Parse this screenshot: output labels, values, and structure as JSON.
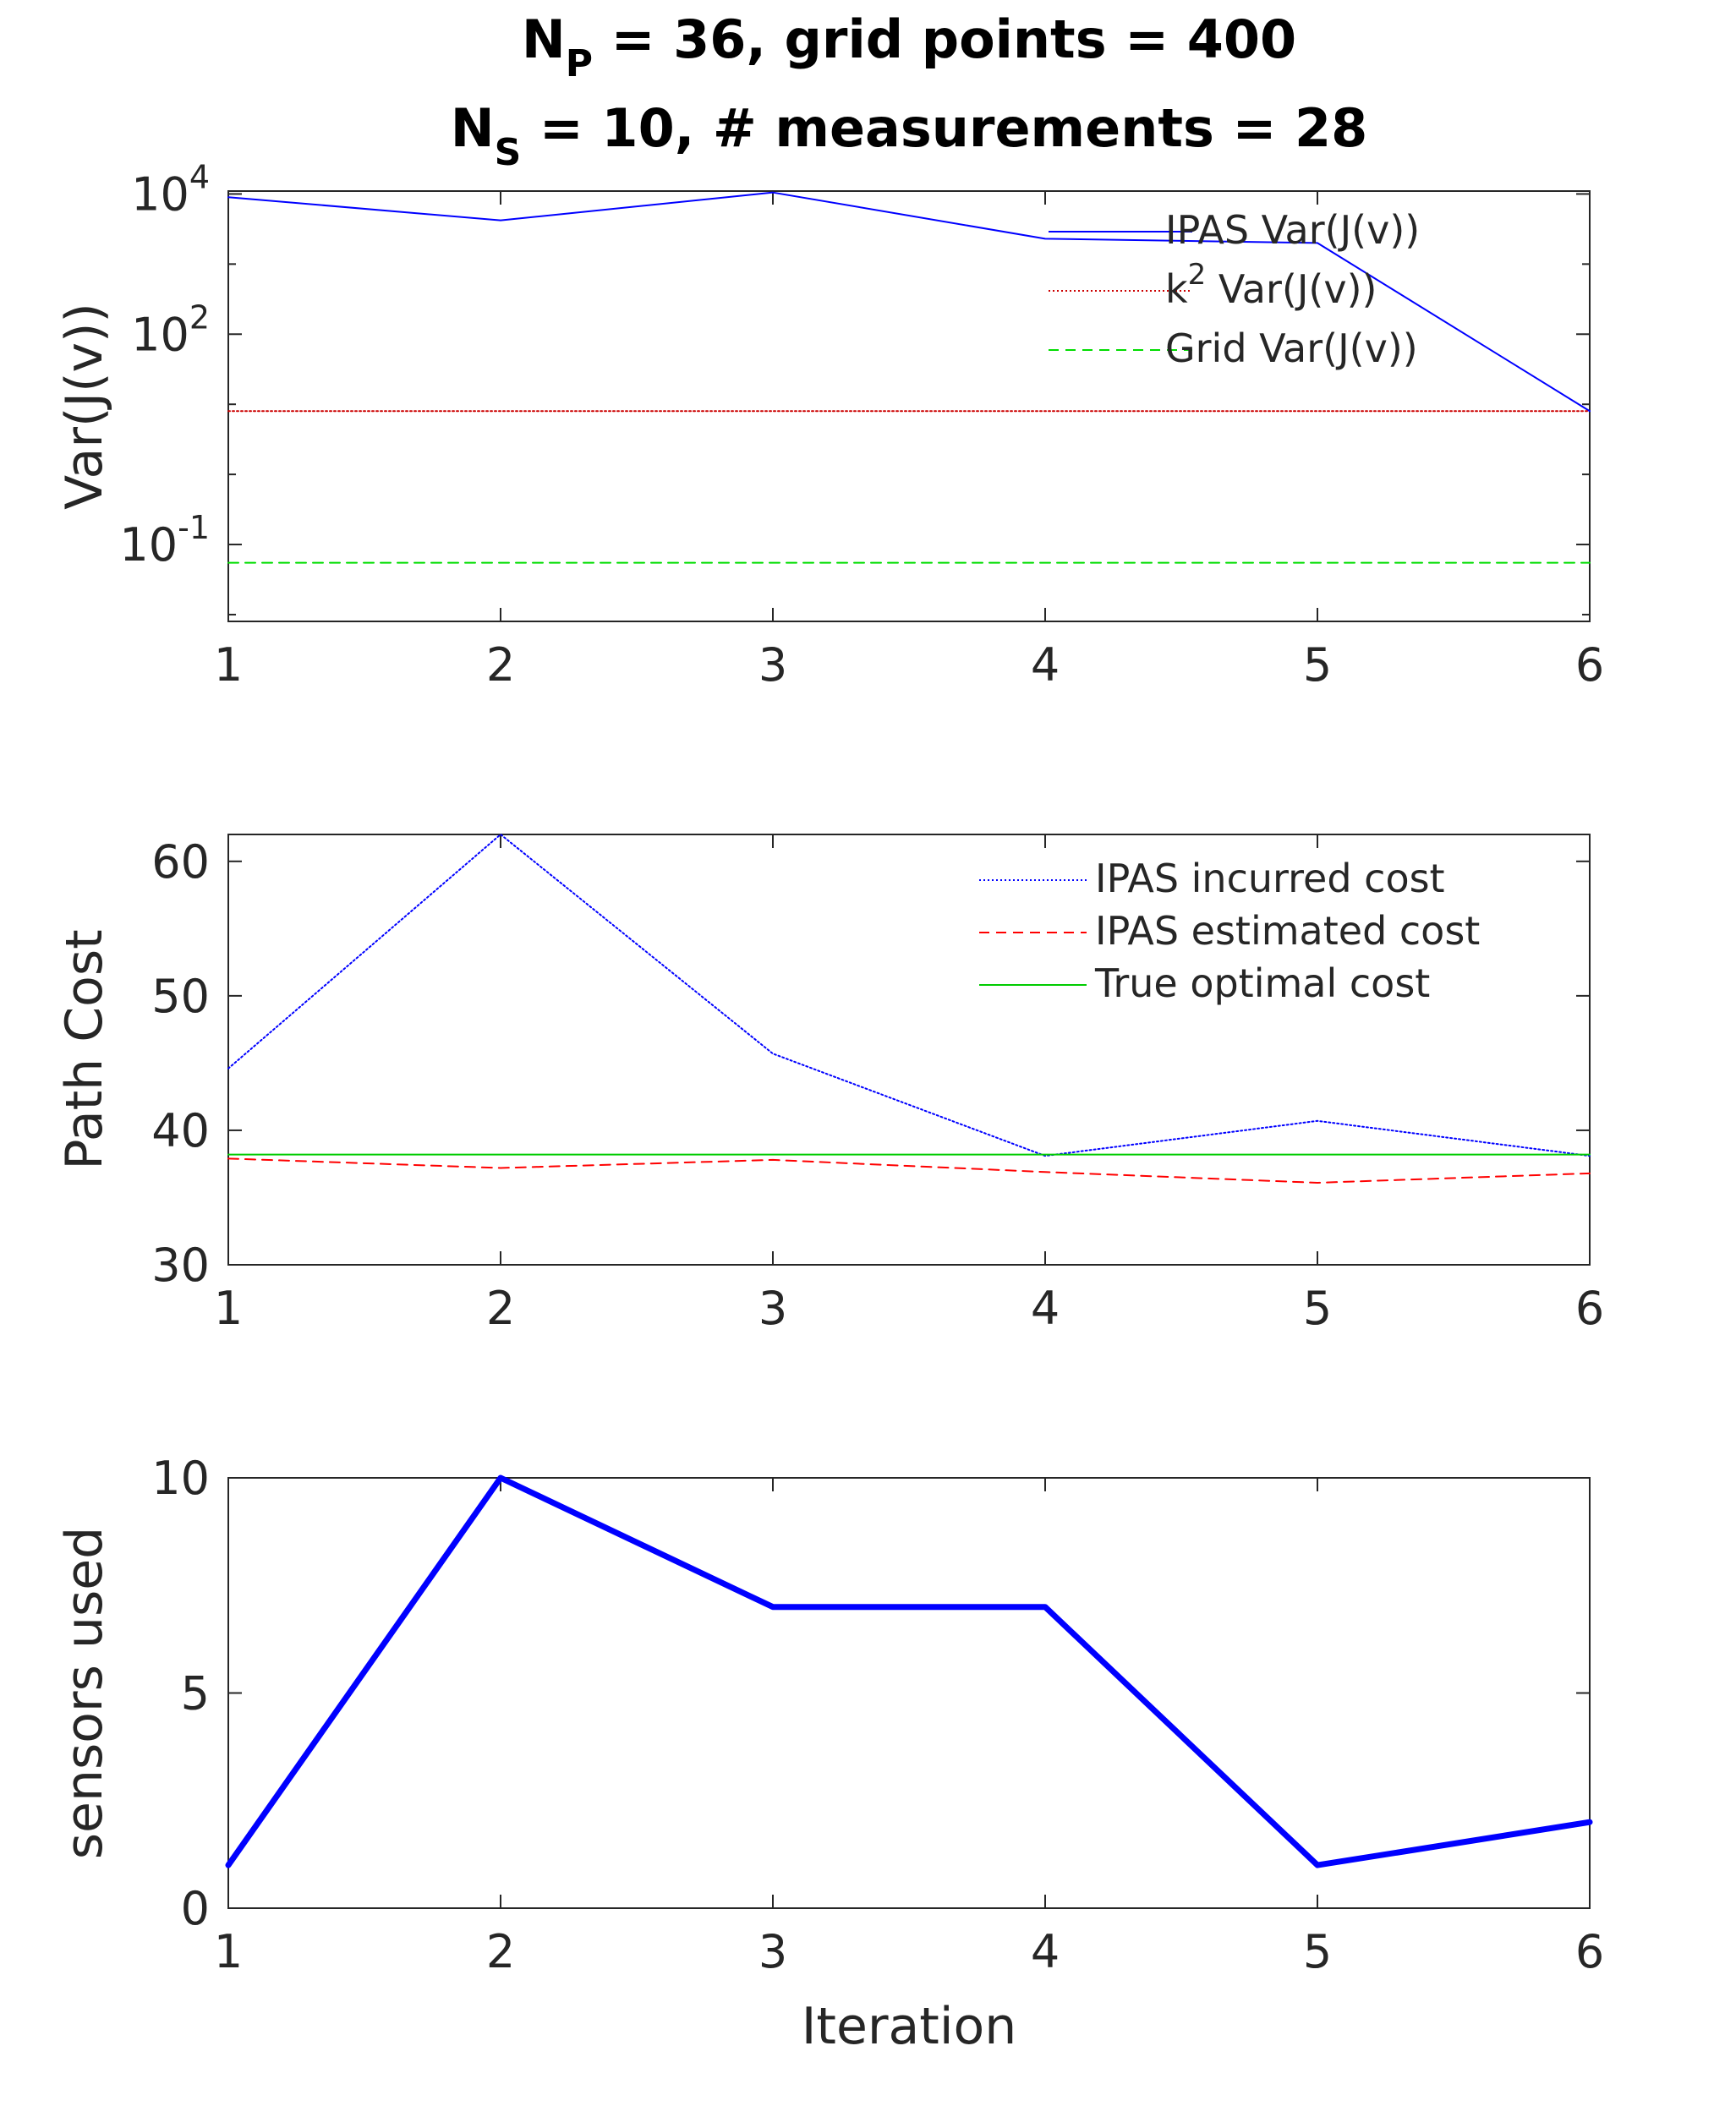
{
  "title": {
    "line1": {
      "main": "N",
      "sub": "P",
      "rest": " = 36, grid points = 400"
    },
    "line2": {
      "main": "N",
      "sub": "S",
      "rest": " = 10, # measurements = 28"
    }
  },
  "chart_data": [
    {
      "type": "line",
      "yscale": "log",
      "ylabel": "Var(J(v))",
      "xlabel": "",
      "xlim": [
        1,
        6
      ],
      "xticks": [
        1,
        2,
        3,
        4,
        5,
        6
      ],
      "ylim": [
        0.008,
        11000
      ],
      "yticks": [
        {
          "value": 0.1,
          "base": "10",
          "exp": "-1"
        },
        {
          "value": 100,
          "base": "10",
          "exp": "2"
        },
        {
          "value": 10000,
          "base": "10",
          "exp": "4"
        }
      ],
      "grid": false,
      "legend_position": "top-right",
      "x": [
        1,
        2,
        3,
        4,
        5,
        6
      ],
      "series": [
        {
          "name": "IPAS Var(J(v))",
          "name_parts": {
            "pre": "IPAS Var(J(v))"
          },
          "values": [
            9000,
            4200,
            10500,
            2300,
            2000,
            8
          ],
          "color": "#0000ff",
          "style": "solid",
          "width": 2
        },
        {
          "name": "k2 Var(J(v))",
          "name_parts": {
            "pre": "k",
            "sup": "2",
            "post": " Var(J(v))"
          },
          "values": [
            8,
            8,
            8,
            8,
            8,
            8
          ],
          "color": "#cc0000",
          "style": "dotted",
          "width": 2
        },
        {
          "name": "Grid Var(J(v))",
          "name_parts": {
            "pre": "Grid Var(J(v))"
          },
          "values": [
            0.055,
            0.055,
            0.055,
            0.055,
            0.055,
            0.055
          ],
          "color": "#00dd00",
          "style": "dashed",
          "width": 2
        }
      ]
    },
    {
      "type": "line",
      "yscale": "linear",
      "ylabel": "Path Cost",
      "xlabel": "",
      "xlim": [
        1,
        6
      ],
      "xticks": [
        1,
        2,
        3,
        4,
        5,
        6
      ],
      "ylim": [
        30,
        62
      ],
      "yticks": [
        {
          "value": 30,
          "label": "30"
        },
        {
          "value": 40,
          "label": "40"
        },
        {
          "value": 50,
          "label": "50"
        },
        {
          "value": 60,
          "label": "60"
        }
      ],
      "grid": false,
      "legend_position": "top-right",
      "x": [
        1,
        2,
        3,
        4,
        5,
        6
      ],
      "series": [
        {
          "name": "IPAS incurred cost",
          "name_parts": {
            "pre": "IPAS incurred cost"
          },
          "values": [
            44.6,
            62,
            45.7,
            38.1,
            40.7,
            38.1
          ],
          "color": "#0000ff",
          "style": "dotted",
          "width": 2
        },
        {
          "name": "IPAS estimated cost",
          "name_parts": {
            "pre": "IPAS estimated cost"
          },
          "values": [
            37.9,
            37.2,
            37.8,
            36.9,
            36.1,
            36.8
          ],
          "color": "#ff0000",
          "style": "dashed",
          "width": 2
        },
        {
          "name": "True optimal cost",
          "name_parts": {
            "pre": "True optimal cost"
          },
          "values": [
            38.2,
            38.2,
            38.2,
            38.2,
            38.2,
            38.2
          ],
          "color": "#00cc00",
          "style": "solid",
          "width": 2
        }
      ]
    },
    {
      "type": "line",
      "yscale": "linear",
      "ylabel": "sensors used",
      "xlabel": "Iteration",
      "xlim": [
        1,
        6
      ],
      "xticks": [
        1,
        2,
        3,
        4,
        5,
        6
      ],
      "ylim": [
        0,
        10
      ],
      "yticks": [
        {
          "value": 0,
          "label": "0"
        },
        {
          "value": 5,
          "label": "5"
        },
        {
          "value": 10,
          "label": "10"
        }
      ],
      "grid": false,
      "legend_position": "none",
      "x": [
        1,
        2,
        3,
        4,
        5,
        6
      ],
      "series": [
        {
          "values": [
            1,
            10,
            7,
            7,
            1,
            2
          ],
          "color": "#0000ff",
          "style": "solid",
          "width": 7
        }
      ]
    }
  ]
}
